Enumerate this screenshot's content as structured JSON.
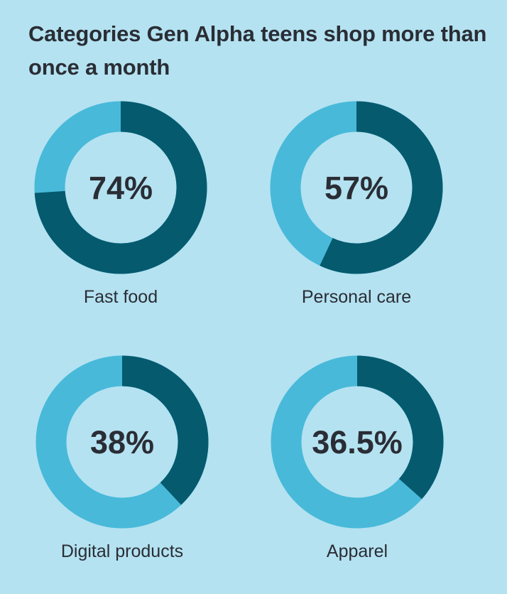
{
  "chart_data": {
    "type": "pie",
    "title": "Categories Gen Alpha teens shop more than once a month",
    "series": [
      {
        "name": "Fast food",
        "value": 74,
        "label": "74%"
      },
      {
        "name": "Personal care",
        "value": 57,
        "label": "57%"
      },
      {
        "name": "Digital products",
        "value": 38,
        "label": "38%"
      },
      {
        "name": "Apparel",
        "value": 36.5,
        "label": "36.5%"
      }
    ],
    "colors": {
      "filled": "#055a6e",
      "remaining": "#48b9d9",
      "background": "#b4e2f1"
    }
  }
}
